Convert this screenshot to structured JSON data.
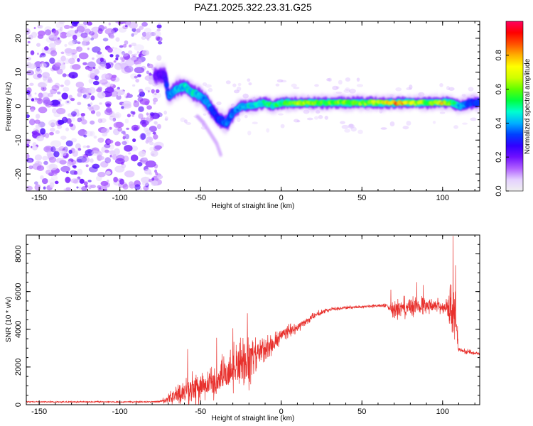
{
  "title": "PAZ1.2025.322.23.31.G25",
  "chart_data": [
    {
      "type": "heatmap",
      "name": "spectrogram",
      "xlabel": "Height of straight line (km)",
      "ylabel": "Frequency (Hz)",
      "xlim": [
        -158,
        123
      ],
      "ylim": [
        -25,
        25
      ],
      "xticks": [
        -150,
        -100,
        -50,
        0,
        50,
        100
      ],
      "yticks": [
        -20,
        -10,
        0,
        10,
        20
      ],
      "noise_region": [
        -158,
        -75
      ],
      "ridge": [
        {
          "x": -78,
          "y": 9,
          "v": 0.2
        },
        {
          "x": -72,
          "y": 9,
          "v": 0.25
        },
        {
          "x": -70,
          "y": 3,
          "v": 0.35
        },
        {
          "x": -65,
          "y": 5,
          "v": 0.4
        },
        {
          "x": -60,
          "y": 6,
          "v": 0.45
        },
        {
          "x": -55,
          "y": 4,
          "v": 0.45
        },
        {
          "x": -50,
          "y": 3,
          "v": 0.4
        },
        {
          "x": -46,
          "y": 1,
          "v": 0.4
        },
        {
          "x": -42,
          "y": -2,
          "v": 0.3
        },
        {
          "x": -38,
          "y": -4,
          "v": 0.3
        },
        {
          "x": -34,
          "y": -5,
          "v": 0.35
        },
        {
          "x": -30,
          "y": -2,
          "v": 0.35
        },
        {
          "x": -25,
          "y": 0,
          "v": 0.4
        },
        {
          "x": -20,
          "y": 0,
          "v": 0.45
        },
        {
          "x": -15,
          "y": 0.5,
          "v": 0.45
        },
        {
          "x": -10,
          "y": 1,
          "v": 0.5
        },
        {
          "x": -5,
          "y": 0,
          "v": 0.5
        },
        {
          "x": 0,
          "y": 1,
          "v": 0.5
        },
        {
          "x": 5,
          "y": 1,
          "v": 0.55
        },
        {
          "x": 10,
          "y": 1,
          "v": 0.65
        },
        {
          "x": 20,
          "y": 1,
          "v": 0.6
        },
        {
          "x": 30,
          "y": 1,
          "v": 0.6
        },
        {
          "x": 40,
          "y": 1,
          "v": 0.6
        },
        {
          "x": 50,
          "y": 1,
          "v": 0.6
        },
        {
          "x": 60,
          "y": 1,
          "v": 0.65
        },
        {
          "x": 70,
          "y": 1,
          "v": 0.85
        },
        {
          "x": 80,
          "y": 1,
          "v": 0.7
        },
        {
          "x": 90,
          "y": 1,
          "v": 0.6
        },
        {
          "x": 100,
          "y": 1,
          "v": 0.75
        },
        {
          "x": 105,
          "y": 1,
          "v": 0.55
        },
        {
          "x": 110,
          "y": 0,
          "v": 0.4
        },
        {
          "x": 118,
          "y": 1,
          "v": 0.3
        },
        {
          "x": 123,
          "y": 1,
          "v": 0.3
        }
      ],
      "branch": [
        {
          "x": -52,
          "y": -3
        },
        {
          "x": -48,
          "y": -5
        },
        {
          "x": -44,
          "y": -8
        },
        {
          "x": -40,
          "y": -11
        },
        {
          "x": -37,
          "y": -15
        }
      ]
    },
    {
      "type": "colorbar",
      "name": "amplitude-colorbar",
      "label": "Normalized spectral amplitude",
      "range": [
        0,
        1
      ],
      "ticks": [
        "0.0",
        "0.2",
        "0.4",
        "0.6",
        "0.8"
      ],
      "tick_values": [
        0,
        0.2,
        0.4,
        0.6,
        0.8
      ],
      "colormap": [
        "#f0f0f0",
        "#e4d0ff",
        "#b060ff",
        "#7010ff",
        "#3000ff",
        "#0040ff",
        "#00b0ff",
        "#00ffd0",
        "#00ff40",
        "#60ff00",
        "#d0ff00",
        "#ffff00",
        "#ffb000",
        "#ff5000",
        "#ff0000",
        "#ff0060"
      ]
    },
    {
      "type": "line",
      "name": "snr-line",
      "xlabel": "Height of straight line (km)",
      "ylabel": "SNR (10 * v/v)",
      "xlim": [
        -158,
        123
      ],
      "ylim": [
        0,
        9000
      ],
      "xticks": [
        -150,
        -100,
        -50,
        0,
        50,
        100
      ],
      "yticks": [
        0,
        2000,
        4000,
        6000,
        8000
      ],
      "color": "#e8302c",
      "envelope": [
        {
          "x": -158,
          "base": 150,
          "amp": 40
        },
        {
          "x": -80,
          "base": 150,
          "amp": 40
        },
        {
          "x": -75,
          "base": 170,
          "amp": 60
        },
        {
          "x": -70,
          "base": 300,
          "amp": 350
        },
        {
          "x": -65,
          "base": 500,
          "amp": 500
        },
        {
          "x": -60,
          "base": 700,
          "amp": 700
        },
        {
          "x": -55,
          "base": 800,
          "amp": 1000
        },
        {
          "x": -50,
          "base": 900,
          "amp": 900
        },
        {
          "x": -45,
          "base": 1000,
          "amp": 900
        },
        {
          "x": -40,
          "base": 1200,
          "amp": 1100
        },
        {
          "x": -35,
          "base": 1600,
          "amp": 1300
        },
        {
          "x": -30,
          "base": 1900,
          "amp": 1400
        },
        {
          "x": -25,
          "base": 2100,
          "amp": 1500
        },
        {
          "x": -20,
          "base": 2200,
          "amp": 1500
        },
        {
          "x": -15,
          "base": 2700,
          "amp": 900
        },
        {
          "x": -10,
          "base": 3000,
          "amp": 700
        },
        {
          "x": -5,
          "base": 3200,
          "amp": 600
        },
        {
          "x": 0,
          "base": 3700,
          "amp": 500
        },
        {
          "x": 5,
          "base": 3900,
          "amp": 400
        },
        {
          "x": 10,
          "base": 4100,
          "amp": 300
        },
        {
          "x": 15,
          "base": 4400,
          "amp": 250
        },
        {
          "x": 20,
          "base": 4700,
          "amp": 200
        },
        {
          "x": 25,
          "base": 4900,
          "amp": 150
        },
        {
          "x": 30,
          "base": 5050,
          "amp": 120
        },
        {
          "x": 40,
          "base": 5150,
          "amp": 100
        },
        {
          "x": 50,
          "base": 5200,
          "amp": 100
        },
        {
          "x": 60,
          "base": 5250,
          "amp": 100
        },
        {
          "x": 66,
          "base": 5250,
          "amp": 150
        },
        {
          "x": 70,
          "base": 5000,
          "amp": 600
        },
        {
          "x": 80,
          "base": 5200,
          "amp": 700
        },
        {
          "x": 90,
          "base": 5300,
          "amp": 500
        },
        {
          "x": 100,
          "base": 5200,
          "amp": 400
        },
        {
          "x": 103,
          "base": 5200,
          "amp": 500
        },
        {
          "x": 106,
          "base": 5600,
          "amp": 2000
        },
        {
          "x": 108,
          "base": 4500,
          "amp": 1500
        },
        {
          "x": 110,
          "base": 2900,
          "amp": 200
        },
        {
          "x": 123,
          "base": 2700,
          "amp": 80
        }
      ],
      "spikes": [
        {
          "x": -58,
          "y": 2950
        },
        {
          "x": -40,
          "y": 3550
        },
        {
          "x": -30,
          "y": 4050
        },
        {
          "x": -21,
          "y": 4850
        },
        {
          "x": 68,
          "y": 6100
        },
        {
          "x": 84,
          "y": 6500
        },
        {
          "x": 88,
          "y": 6350
        },
        {
          "x": 106.5,
          "y": 8950
        },
        {
          "x": 108,
          "y": 7400
        }
      ]
    }
  ]
}
